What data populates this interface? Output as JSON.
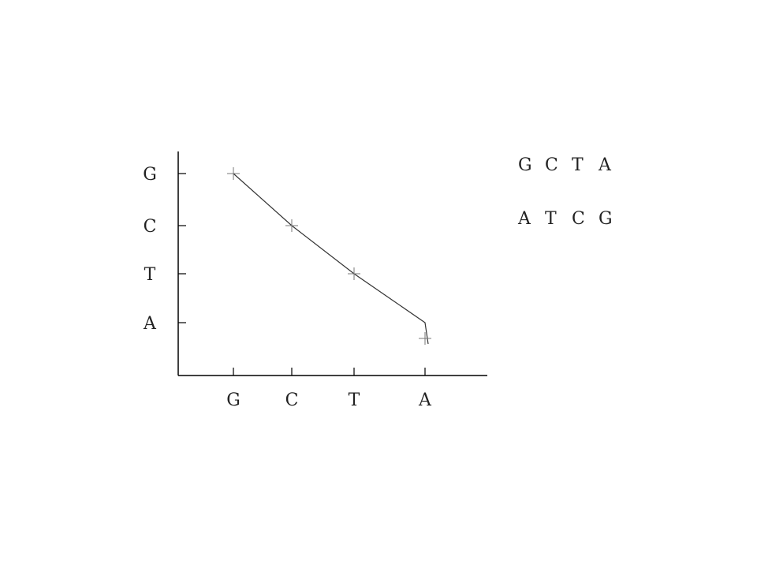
{
  "chart_data": {
    "type": "line",
    "x_categories": [
      "G",
      "C",
      "T",
      "A"
    ],
    "y_categories": [
      "A",
      "T",
      "C",
      "G"
    ],
    "points": [
      {
        "x": "G",
        "y": "G"
      },
      {
        "x": "C",
        "y": "C"
      },
      {
        "x": "T",
        "y": "T"
      },
      {
        "x": "A",
        "y": "A"
      }
    ],
    "title": "",
    "xlabel": "",
    "ylabel": "",
    "grid": false,
    "marker": "plus"
  },
  "sequences": [
    [
      "G",
      "C",
      "T",
      "A"
    ],
    [
      "A",
      "T",
      "C",
      "G"
    ]
  ],
  "colors": {
    "axis": "#000000",
    "line": "#333333",
    "marker": "#777777"
  }
}
